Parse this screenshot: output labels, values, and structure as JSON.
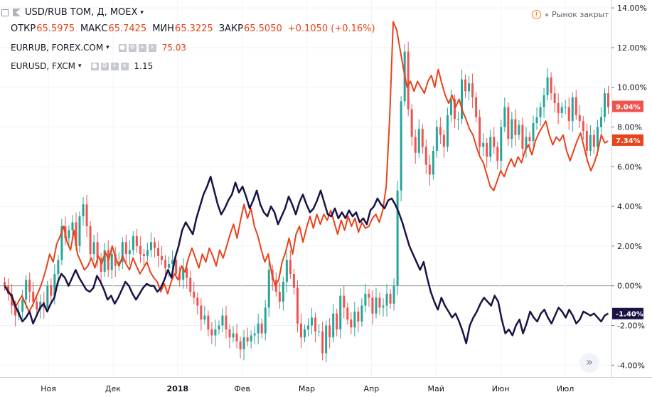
{
  "legend": {
    "main_symbol": "USD/RUB TOM, Д, MOEX",
    "o_label": "ОТКР",
    "o_value": "65.5975",
    "h_label": "МАКС",
    "h_value": "65.7425",
    "l_label": "МИН",
    "l_value": "65.3225",
    "c_label": "ЗАКР",
    "c_value": "65.5050",
    "change": "+0.1050 (+0.16%)",
    "compare1_symbol": "EURRUB, FOREX.COM",
    "compare1_value": "75.03",
    "compare2_symbol": "EURUSD, FXCM",
    "compare2_value": "1.15"
  },
  "market_status": "Рынок закрыт",
  "colors": {
    "up": "#26a69a",
    "down": "#ef5350",
    "eurrub": "#e8431b",
    "eurusd": "#1a1346",
    "grid": "#f0f3fa",
    "axis_text": "#131722"
  },
  "chart_data": {
    "type": "candlestick + line",
    "x_tick_labels": [
      "Ноя",
      "Дек",
      "2018",
      "Фев",
      "Мар",
      "Апр",
      "Май",
      "Июн",
      "Июл"
    ],
    "y_tick_labels": [
      "14.00%",
      "12.00%",
      "10.00%",
      "8.00%",
      "6.00%",
      "4.00%",
      "2.00%",
      "0.00%",
      "-2.00%",
      "-4.00%"
    ],
    "y_range_percent": [
      -4.6,
      14.4
    ],
    "last_value_labels": {
      "eurrub": "7.34%",
      "usdrub": "9.04%",
      "eurusd": "-1.40%"
    },
    "usdrub_close_percent": [
      0.0,
      -0.4,
      -1.0,
      -1.5,
      -1.3,
      -0.7,
      0.3,
      -0.3,
      -0.8,
      -1.2,
      -0.8,
      -1.1,
      0.0,
      -0.5,
      0.6,
      1.3,
      3.0,
      2.4,
      2.8,
      3.2,
      2.0,
      3.5,
      4.1,
      3.0,
      1.6,
      2.2,
      1.4,
      0.7,
      1.8,
      0.8,
      1.6,
      1.0,
      1.2,
      2.2,
      1.6,
      1.8,
      2.5,
      2.0,
      1.6,
      1.5,
      1.8,
      2.2,
      1.9,
      1.5,
      1.3,
      0.9,
      1.1,
      1.3,
      0.6,
      0.3,
      0.9,
      0.4,
      -0.3,
      -0.6,
      -1.0,
      -1.7,
      -1.5,
      -2.2,
      -2.5,
      -2.2,
      -2.0,
      -1.5,
      -2.2,
      -2.6,
      -2.4,
      -2.8,
      -3.2,
      -2.6,
      -2.8,
      -2.5,
      -2.4,
      -1.9,
      -2.4,
      -1.1,
      0.8,
      0.3,
      -0.3,
      -0.8,
      0.2,
      1.3,
      0.6,
      -0.1,
      -1.9,
      -2.6,
      -2.2,
      -2.0,
      -1.6,
      -2.3,
      -2.3,
      -3.4,
      -2.0,
      -2.6,
      -1.4,
      -2.2,
      -0.5,
      -1.1,
      -1.7,
      -2.1,
      -1.3,
      -1.8,
      -1.0,
      -0.4,
      -0.6,
      -1.4,
      -0.6,
      -1.1,
      -1.0,
      -0.4,
      -0.9,
      0.0,
      4.8,
      9.3,
      11.8,
      8.9,
      7.5,
      6.7,
      7.9,
      7.0,
      6.1,
      5.6,
      6.8,
      8.0,
      7.6,
      7.0,
      8.6,
      9.4,
      8.4,
      8.4,
      10.4,
      9.8,
      10.2,
      9.5,
      8.5,
      7.0,
      7.2,
      6.5,
      7.5,
      7.0,
      6.3,
      8.0,
      9.0,
      7.4,
      8.4,
      7.6,
      8.1,
      6.9,
      7.5,
      7.3,
      8.2,
      8.5,
      9.0,
      9.6,
      10.5,
      9.7,
      9.2,
      8.7,
      9.0,
      9.0,
      8.3,
      9.5,
      8.6,
      8.3,
      7.8,
      6.8,
      7.6,
      7.0,
      8.0,
      8.5,
      9.7,
      9.0
    ]
  }
}
